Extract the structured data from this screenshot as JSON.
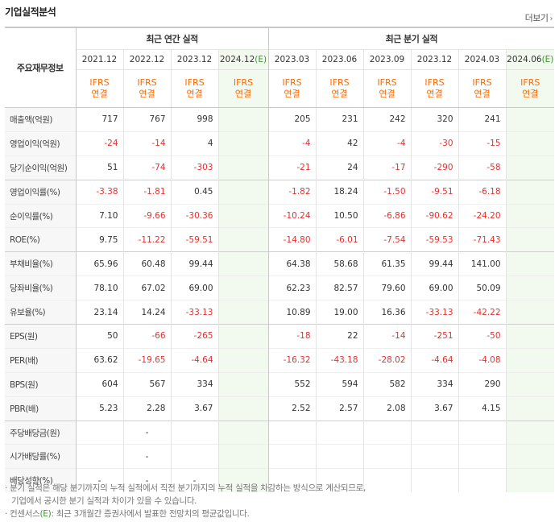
{
  "header": {
    "title": "기업실적분석",
    "more_label": "더보기",
    "more_arrow": "›"
  },
  "table": {
    "corner_label": "주요재무정보",
    "groups": {
      "annual": "최근 연간 실적",
      "quarter": "최근 분기 실적"
    },
    "periods": [
      "2021.12",
      "2022.12",
      "2023.12",
      "2024.12",
      "2023.03",
      "2023.06",
      "2023.09",
      "2023.12",
      "2024.03",
      "2024.06"
    ],
    "estimate_suffix": "(E)",
    "ifrs_line1": "IFRS",
    "ifrs_line2": "연결",
    "rows": [
      {
        "label": "매출액(억원)",
        "values": [
          "717",
          "767",
          "998",
          "",
          "205",
          "231",
          "242",
          "320",
          "241",
          ""
        ]
      },
      {
        "label": "영업이익(억원)",
        "values": [
          "-24",
          "-14",
          "4",
          "",
          "-4",
          "42",
          "-4",
          "-30",
          "-15",
          ""
        ]
      },
      {
        "label": "당기순이익(억원)",
        "values": [
          "51",
          "-74",
          "-303",
          "",
          "-21",
          "24",
          "-17",
          "-290",
          "-58",
          ""
        ]
      },
      {
        "label": "영업이익률(%)",
        "values": [
          "-3.38",
          "-1.81",
          "0.45",
          "",
          "-1.82",
          "18.24",
          "-1.50",
          "-9.51",
          "-6.18",
          ""
        ]
      },
      {
        "label": "순이익률(%)",
        "values": [
          "7.10",
          "-9.66",
          "-30.36",
          "",
          "-10.24",
          "10.50",
          "-6.86",
          "-90.62",
          "-24.20",
          ""
        ]
      },
      {
        "label": "ROE(%)",
        "values": [
          "9.75",
          "-11.22",
          "-59.51",
          "",
          "-14.80",
          "-6.01",
          "-7.54",
          "-59.53",
          "-71.43",
          ""
        ]
      },
      {
        "label": "부채비율(%)",
        "values": [
          "65.96",
          "60.48",
          "99.44",
          "",
          "64.38",
          "58.68",
          "61.35",
          "99.44",
          "141.00",
          ""
        ]
      },
      {
        "label": "당좌비율(%)",
        "values": [
          "78.10",
          "67.02",
          "69.00",
          "",
          "62.23",
          "82.57",
          "79.60",
          "69.00",
          "50.09",
          ""
        ]
      },
      {
        "label": "유보율(%)",
        "values": [
          "23.14",
          "14.24",
          "-33.13",
          "",
          "10.89",
          "19.00",
          "16.36",
          "-33.13",
          "-42.22",
          ""
        ]
      },
      {
        "label": "EPS(원)",
        "values": [
          "50",
          "-66",
          "-265",
          "",
          "-18",
          "22",
          "-14",
          "-251",
          "-50",
          ""
        ]
      },
      {
        "label": "PER(배)",
        "values": [
          "63.62",
          "-19.65",
          "-4.64",
          "",
          "-16.32",
          "-43.18",
          "-28.02",
          "-4.64",
          "-4.08",
          ""
        ]
      },
      {
        "label": "BPS(원)",
        "values": [
          "604",
          "567",
          "334",
          "",
          "552",
          "594",
          "582",
          "334",
          "290",
          ""
        ]
      },
      {
        "label": "PBR(배)",
        "values": [
          "5.23",
          "2.28",
          "3.67",
          "",
          "2.52",
          "2.57",
          "2.08",
          "3.67",
          "4.15",
          ""
        ]
      },
      {
        "label": "주당배당금(원)",
        "values": [
          "",
          "-",
          "",
          "",
          "",
          "",
          "",
          "",
          "",
          ""
        ]
      },
      {
        "label": "시가배당률(%)",
        "values": [
          "",
          "-",
          "",
          "",
          "",
          "",
          "",
          "",
          "",
          ""
        ]
      },
      {
        "label": "배당성향(%)",
        "values": [
          "-",
          "-",
          "-",
          "",
          "",
          "",
          "",
          "",
          "",
          ""
        ]
      }
    ]
  },
  "notes": {
    "line1": "· 분기 실적은 해당 분기까지의 누적 실적에서 직전 분기까지의 누적 실적을 차감하는 방식으로 계산되므로,",
    "line2": "기업에서 공시한 분기 실적과 차이가 있을 수 있습니다.",
    "line3_prefix": "· 컨센서스",
    "line3_mark": "(E)",
    "line3_suffix": ": 최근 3개월간 증권사에서 발표한 전망치의 평균값입니다."
  },
  "colors": {
    "negative": "#e8302c",
    "ifrs": "#ff6a00",
    "estimate_bg": "#f2f9ee",
    "estimate_mark": "#3a9a2a"
  }
}
